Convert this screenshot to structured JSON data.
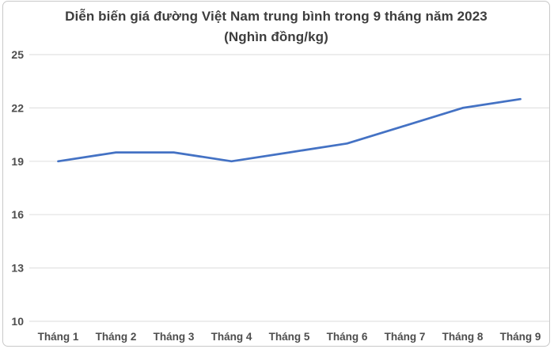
{
  "chart_data": {
    "type": "line",
    "title": "Diễn biến giá đường Việt Nam trung bình trong 9 tháng năm 2023",
    "subtitle": "(Nghìn đồng/kg)",
    "categories": [
      "Tháng 1",
      "Tháng 2",
      "Tháng 3",
      "Tháng 4",
      "Tháng 5",
      "Tháng 6",
      "Tháng 7",
      "Tháng 8",
      "Tháng 9"
    ],
    "values": [
      19.0,
      19.5,
      19.5,
      19.0,
      19.5,
      20.0,
      21.0,
      22.0,
      22.5
    ],
    "xlabel": "",
    "ylabel": "",
    "ylim": [
      10,
      25
    ],
    "yticks": [
      10,
      13,
      16,
      19,
      22,
      25
    ],
    "grid": true,
    "legend": false,
    "colors": {
      "line": "#4472C4",
      "gridline": "#e2e2e2",
      "frame_border": "#c9c9c9",
      "title_text": "#3d3d3d",
      "tick_text": "#4d4d4d"
    }
  }
}
